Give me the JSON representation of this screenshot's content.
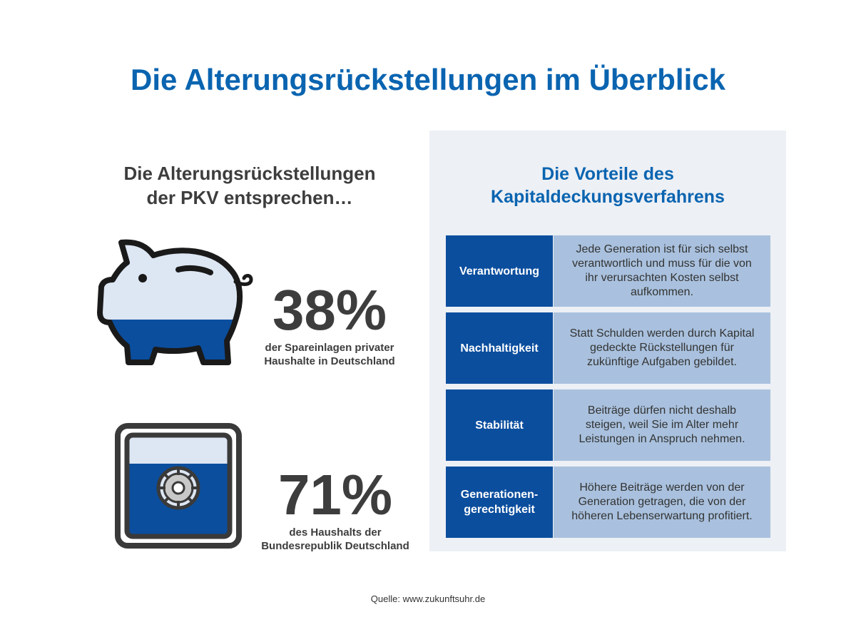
{
  "title": "Die Alterungsrückstellungen im Überblick",
  "left": {
    "heading_line1": "Die Alterungsrückstellungen",
    "heading_line2": "der PKV entsprechen…",
    "stats": [
      {
        "value": "38%",
        "desc_line1": "der Spareinlagen privater",
        "desc_line2": "Haushalte in Deutschland",
        "icon": "piggy-bank-icon",
        "fill_fraction": 0.38
      },
      {
        "value": "71%",
        "desc_line1": "des Haushalts der",
        "desc_line2": "Bundesrepublik Deutschland",
        "icon": "safe-icon",
        "fill_fraction": 0.71
      }
    ]
  },
  "panel": {
    "title_line1": "Die Vorteile des",
    "title_line2": "Kapitaldeckungsverfahrens",
    "rows": [
      {
        "label_line1": "Verantwortung",
        "label_line2": "",
        "text_lines": [
          "Jede Generation ist für sich selbst",
          "verantwortlich und muss für die von",
          "ihr verursachten Kosten selbst",
          "aufkommen."
        ]
      },
      {
        "label_line1": "Nachhaltigkeit",
        "label_line2": "",
        "text_lines": [
          "Statt Schulden werden durch Kapital",
          "gedeckte Rückstellungen für",
          "zukünftige Aufgaben gebildet."
        ]
      },
      {
        "label_line1": "Stabilität",
        "label_line2": "",
        "text_lines": [
          "Beiträge dürfen nicht deshalb",
          "steigen, weil Sie im Alter mehr",
          "Leistungen in Anspruch nehmen."
        ]
      },
      {
        "label_line1": "Generationen-",
        "label_line2": "gerechtigkeit",
        "text_lines": [
          "Höhere Beiträge werden von der",
          "Generation getragen, die von der",
          "höheren Lebenserwartung profitiert."
        ]
      }
    ]
  },
  "source": "Quelle: www.zukunftsuhr.de",
  "colors": {
    "title_blue": "#0a64b0",
    "dark_blue": "#0b4e9e",
    "light_blue": "#a9c1de",
    "icon_light": "#dde6f3",
    "outline": "#1a1a1a",
    "panel_bg": "#edf0f5",
    "text_gray": "#3d3d3d"
  }
}
